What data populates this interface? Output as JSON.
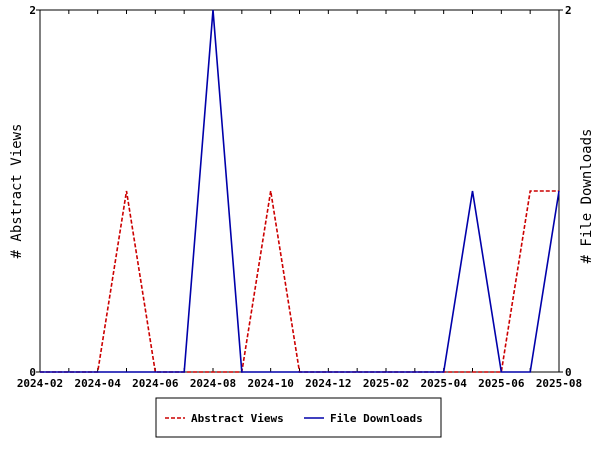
{
  "chart_data": {
    "type": "line",
    "x": [
      "2024-02",
      "2024-03",
      "2024-04",
      "2024-05",
      "2024-06",
      "2024-07",
      "2024-08",
      "2024-09",
      "2024-10",
      "2024-11",
      "2024-12",
      "2025-01",
      "2025-02",
      "2025-03",
      "2025-04",
      "2025-05",
      "2025-06",
      "2025-07",
      "2025-08"
    ],
    "x_tick_labels": [
      "2024-02",
      "2024-04",
      "2024-06",
      "2024-08",
      "2024-10",
      "2024-12",
      "2025-02",
      "2025-04",
      "2025-06",
      "2025-08"
    ],
    "series": [
      {
        "name": "Abstract Views",
        "axis": "left",
        "color": "#cc0000",
        "style": "dashed",
        "values": [
          0,
          0,
          0,
          1,
          0,
          0,
          0,
          0,
          1,
          0,
          0,
          0,
          0,
          0,
          0,
          0,
          0,
          1,
          1
        ]
      },
      {
        "name": "File Downloads",
        "axis": "right",
        "color": "#0000aa",
        "style": "solid",
        "values": [
          0,
          0,
          0,
          0,
          0,
          0,
          2,
          0,
          0,
          0,
          0,
          0,
          0,
          0,
          0,
          1,
          0,
          0,
          1
        ]
      }
    ],
    "ylabel": "# Abstract Views",
    "y2label": "# File Downloads",
    "ylim": [
      0,
      2
    ],
    "y2lim": [
      0,
      2
    ],
    "y_ticks": [
      "0",
      "2"
    ],
    "y2_ticks": [
      "0",
      "2"
    ],
    "grid": false,
    "legend_position": "bottom-center"
  }
}
